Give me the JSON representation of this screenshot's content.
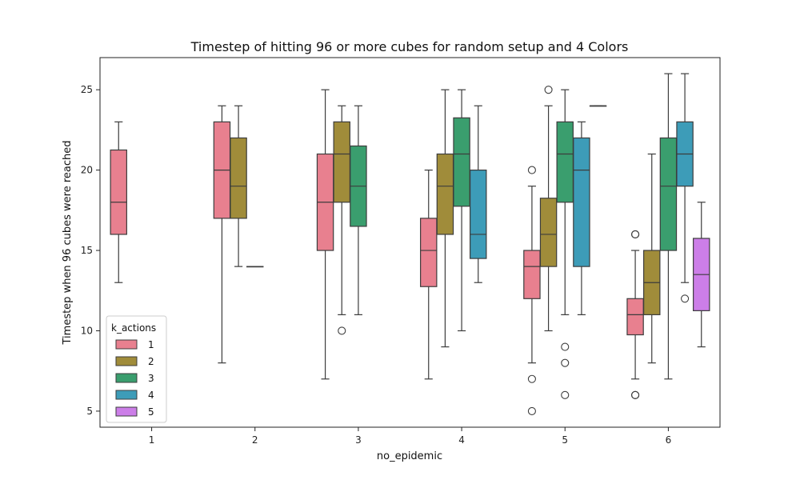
{
  "chart_data": {
    "type": "box",
    "title": "Timestep of hitting 96 or more cubes for random setup and 4 Colors",
    "xlabel": "no_epidemic",
    "ylabel": "Timestep when 96 cubes were reached",
    "categories": [
      "1",
      "2",
      "3",
      "4",
      "5",
      "6"
    ],
    "yticks": [
      5,
      10,
      15,
      20,
      25
    ],
    "ylim": [
      4,
      27
    ],
    "legend": {
      "title": "k_actions",
      "position": "lower-left",
      "entries": [
        "1",
        "2",
        "3",
        "4",
        "5"
      ]
    },
    "series": [
      {
        "name": "1",
        "color": "#e8808f",
        "boxes": [
          {
            "category": "1",
            "whislo": 13,
            "q1": 16,
            "median": 18,
            "q3": 21.25,
            "whishi": 23,
            "fliers": []
          },
          {
            "category": "2",
            "whislo": 8,
            "q1": 17,
            "median": 20,
            "q3": 23,
            "whishi": 24,
            "fliers": []
          },
          {
            "category": "3",
            "whislo": 7,
            "q1": 15,
            "median": 18,
            "q3": 21,
            "whishi": 25,
            "fliers": []
          },
          {
            "category": "4",
            "whislo": 7,
            "q1": 12.75,
            "median": 15,
            "q3": 17,
            "whishi": 20,
            "fliers": []
          },
          {
            "category": "5",
            "whislo": 8,
            "q1": 12,
            "median": 14,
            "q3": 15,
            "whishi": 19,
            "fliers": [
              20,
              7,
              5
            ]
          },
          {
            "category": "6",
            "whislo": 7,
            "q1": 9.75,
            "median": 11,
            "q3": 12,
            "whishi": 15,
            "fliers": [
              16,
              16,
              6,
              6
            ]
          }
        ]
      },
      {
        "name": "2",
        "color": "#a08c3a",
        "boxes": [
          {
            "category": "2",
            "whislo": 14,
            "q1": 17,
            "median": 19,
            "q3": 22,
            "whishi": 24,
            "fliers": []
          },
          {
            "category": "3",
            "whislo": 11,
            "q1": 18,
            "median": 21,
            "q3": 23,
            "whishi": 24,
            "fliers": [
              10
            ]
          },
          {
            "category": "4",
            "whislo": 9,
            "q1": 16,
            "median": 19,
            "q3": 21,
            "whishi": 25,
            "fliers": []
          },
          {
            "category": "5",
            "whislo": 10,
            "q1": 14,
            "median": 16,
            "q3": 18.25,
            "whishi": 24,
            "fliers": [
              25
            ]
          },
          {
            "category": "6",
            "whislo": 8,
            "q1": 11,
            "median": 13,
            "q3": 15,
            "whishi": 21,
            "fliers": []
          }
        ]
      },
      {
        "name": "3",
        "color": "#3a9e6e",
        "boxes": [
          {
            "category": "2",
            "whislo": 14,
            "q1": 14,
            "median": 14,
            "q3": 14,
            "whishi": 14,
            "fliers": []
          },
          {
            "category": "3",
            "whislo": 11,
            "q1": 16.5,
            "median": 19,
            "q3": 21.5,
            "whishi": 24,
            "fliers": []
          },
          {
            "category": "4",
            "whislo": 10,
            "q1": 17.75,
            "median": 21,
            "q3": 23.25,
            "whishi": 25,
            "fliers": []
          },
          {
            "category": "5",
            "whislo": 11,
            "q1": 18,
            "median": 21,
            "q3": 23,
            "whishi": 25,
            "fliers": [
              9,
              8,
              6
            ]
          },
          {
            "category": "6",
            "whislo": 7,
            "q1": 15,
            "median": 19,
            "q3": 22,
            "whishi": 26,
            "fliers": []
          }
        ]
      },
      {
        "name": "4",
        "color": "#3d9cb8",
        "boxes": [
          {
            "category": "4",
            "whislo": 13,
            "q1": 14.5,
            "median": 16,
            "q3": 20,
            "whishi": 24,
            "fliers": []
          },
          {
            "category": "5",
            "whislo": 11,
            "q1": 14,
            "median": 20,
            "q3": 22,
            "whishi": 23,
            "fliers": []
          },
          {
            "category": "6",
            "whislo": 13,
            "q1": 19,
            "median": 21,
            "q3": 23,
            "whishi": 26,
            "fliers": [
              12
            ]
          }
        ]
      },
      {
        "name": "5",
        "color": "#cc7ee8",
        "boxes": [
          {
            "category": "5",
            "whislo": 24,
            "q1": 24,
            "median": 24,
            "q3": 24,
            "whishi": 24,
            "fliers": []
          },
          {
            "category": "6",
            "whislo": 9,
            "q1": 11.25,
            "median": 13.5,
            "q3": 15.75,
            "whishi": 18,
            "fliers": []
          }
        ]
      }
    ]
  }
}
